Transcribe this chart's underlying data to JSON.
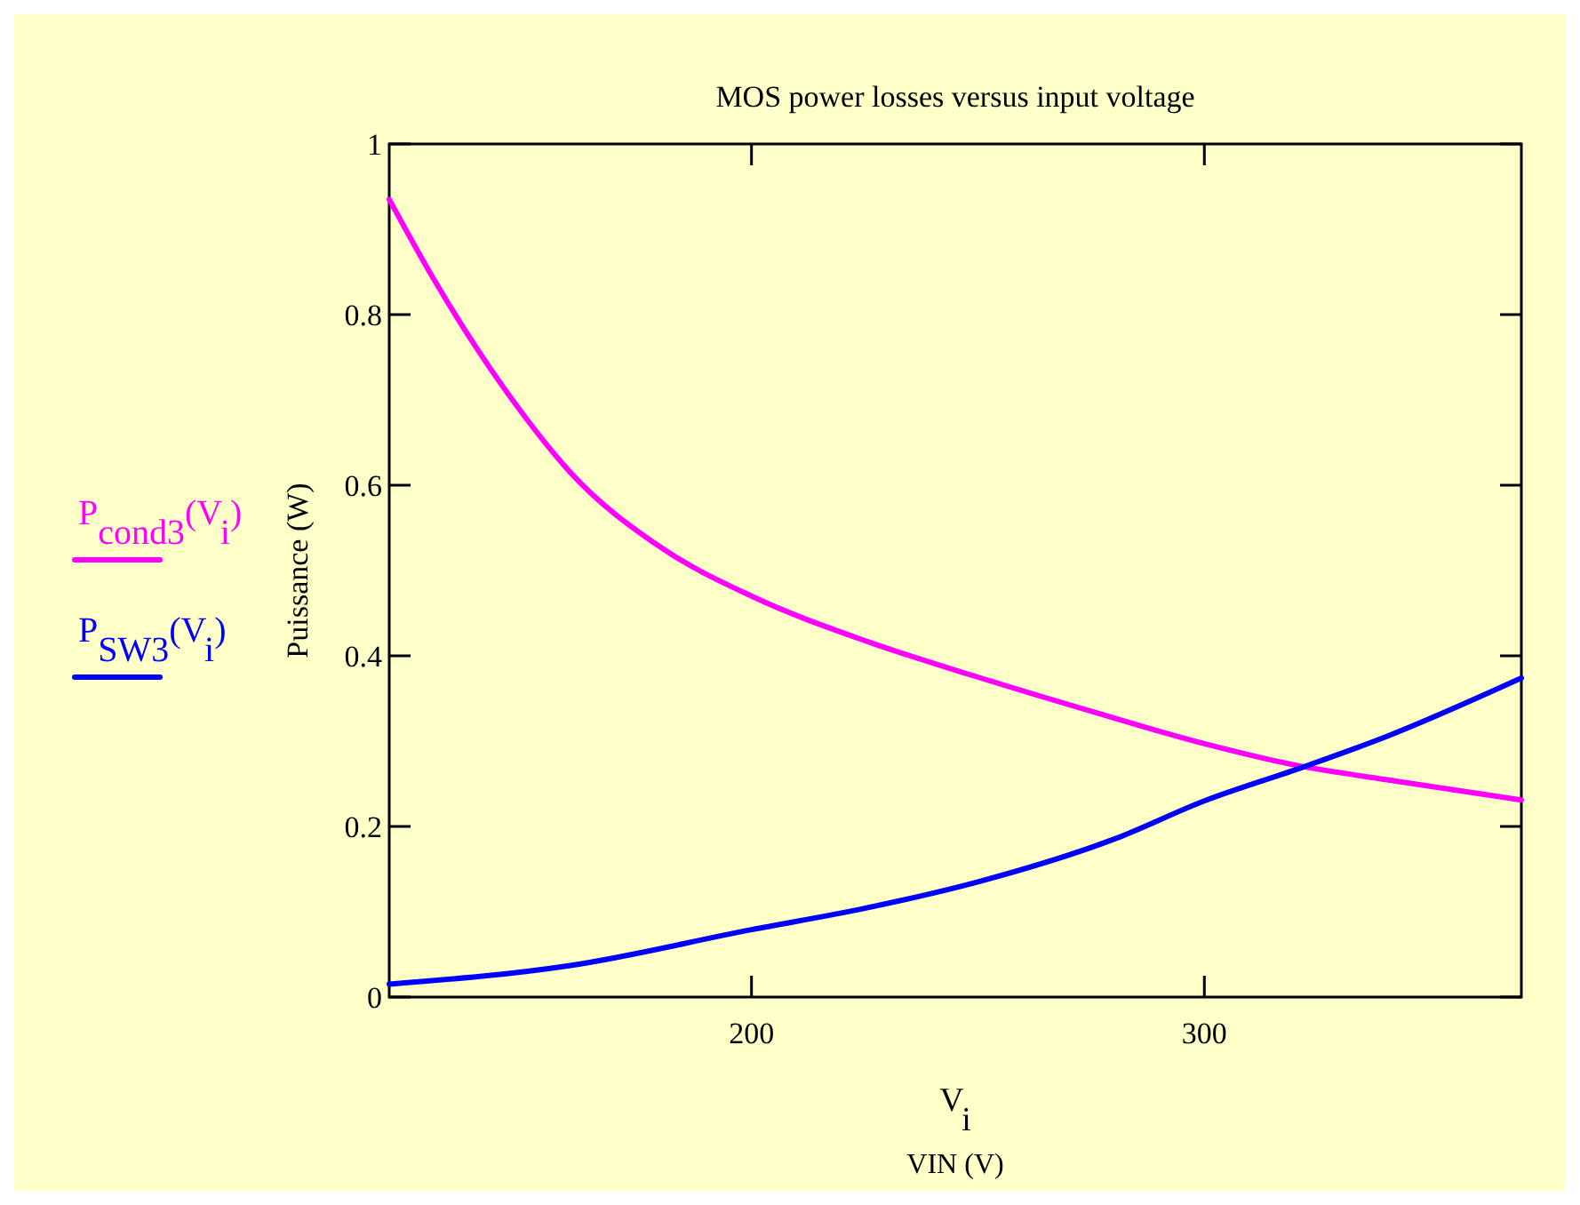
{
  "chart_data": {
    "type": "line",
    "title": "MOS power losses versus input voltage",
    "xlabel": "V$_{i}$",
    "ylabel": "Puissance (W)",
    "annotations": [
      "VIN (V)"
    ],
    "xlim": [
      120,
      370
    ],
    "xticks": [
      200,
      300
    ],
    "ylim": [
      0,
      1
    ],
    "yticks": [
      0,
      0.2,
      0.4,
      0.6,
      0.8,
      1
    ],
    "grid": false,
    "legend": "left",
    "line_style": "solid",
    "series": [
      {
        "name": "P$_{cond3}$(V$_{i}$)",
        "color": "#ff00ff",
        "x": [
          120,
          130,
          140,
          150,
          160,
          180,
          200,
          226,
          250,
          275,
          300,
          320,
          340,
          370
        ],
        "values": [
          0.935,
          0.84,
          0.755,
          0.68,
          0.615,
          0.527,
          0.47,
          0.416,
          0.375,
          0.335,
          0.297,
          0.272,
          0.255,
          0.231
        ]
      },
      {
        "name": "P$_{SW3}$(V$_{i}$)",
        "color": "#0000ff",
        "x": [
          120,
          160,
          200,
          225,
          250,
          280,
          300,
          322,
          340,
          370
        ],
        "values": [
          0.015,
          0.037,
          0.079,
          0.104,
          0.135,
          0.185,
          0.23,
          0.27,
          0.305,
          0.374
        ]
      }
    ]
  }
}
